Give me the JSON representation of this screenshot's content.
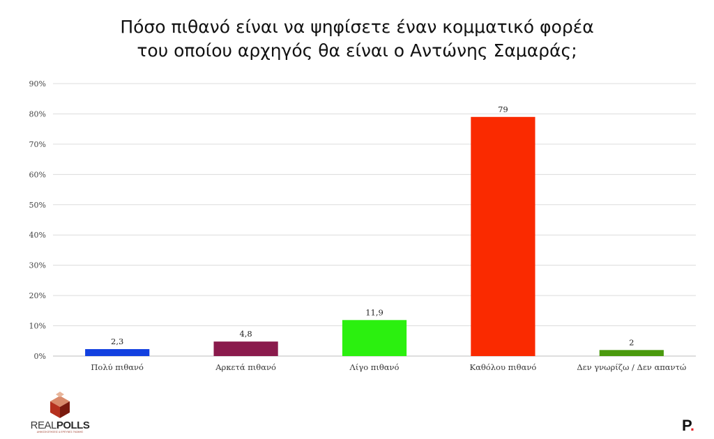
{
  "chart_data": {
    "type": "bar",
    "title": [
      "Πόσο πιθανό είναι να ψηφίσετε έναν κομματικό φορέα",
      "του οποίου αρχηγός θα είναι ο Αντώνης Σαμαράς;"
    ],
    "categories": [
      "Πολύ πιθανό",
      "Αρκετά πιθανό",
      "Λίγο πιθανό",
      "Καθόλου πιθανό",
      "Δεν γνωρίζω / Δεν απαντώ"
    ],
    "values": [
      2.3,
      4.8,
      11.9,
      79,
      2
    ],
    "data_labels": [
      "2,3",
      "4,8",
      "11,9",
      "79",
      "2"
    ],
    "colors": [
      "#1240e0",
      "#8a1a4c",
      "#2bf00f",
      "#fa2a00",
      "#4a9a0e"
    ],
    "ylim": [
      0,
      90
    ],
    "yticks": [
      0,
      10,
      20,
      30,
      40,
      50,
      60,
      70,
      80,
      90
    ],
    "ytick_labels": [
      "0%",
      "10%",
      "20%",
      "30%",
      "40%",
      "50%",
      "60%",
      "70%",
      "80%",
      "90%"
    ],
    "grid": true,
    "legend": "none"
  },
  "branding": {
    "logo_text_light": "REAL",
    "logo_text_bold": "POLLS",
    "logo_tagline": "ΔΗΜΟΣΚΟΠΗΣΕΙΣ & ΕΡΕΥΝΕΣ ΓΝΩΜΗΣ",
    "site_letter": "P",
    "site_dot": "."
  }
}
